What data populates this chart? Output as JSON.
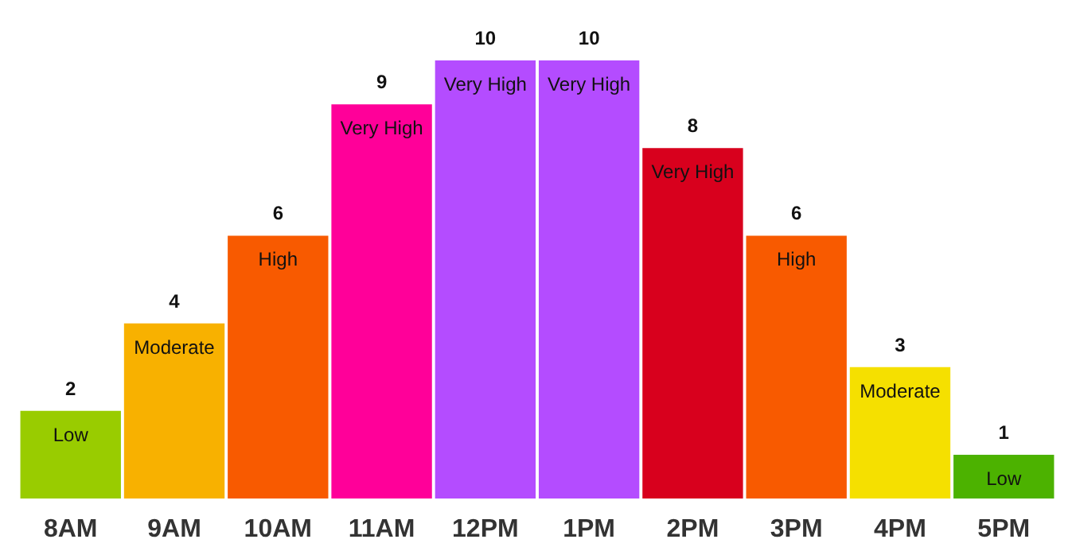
{
  "chart_data": {
    "type": "bar",
    "categories": [
      "8AM",
      "9AM",
      "10AM",
      "11AM",
      "12PM",
      "1PM",
      "2PM",
      "3PM",
      "4PM",
      "5PM"
    ],
    "values": [
      2,
      4,
      6,
      9,
      10,
      10,
      8,
      6,
      3,
      1
    ],
    "colors": [
      "#99cc00",
      "#f8b100",
      "#f85a00",
      "#ff0099",
      "#b44cff",
      "#b44cff",
      "#d8001d",
      "#f85a00",
      "#f5e000",
      "#4cb200"
    ],
    "data_labels": true,
    "tick_labels": "x",
    "grid": false,
    "annotations": [
      {
        "text": "Low",
        "x": "8AM",
        "y": 2
      },
      {
        "text": "Moderate",
        "x": "9AM",
        "y": 4
      },
      {
        "text": "High",
        "x": "10AM",
        "y": 6
      },
      {
        "text": "Very High",
        "x": "11AM",
        "y": 9
      },
      {
        "text": "Very High",
        "x": "12PM",
        "y": 10
      },
      {
        "text": "Very High",
        "x": "1PM",
        "y": 10
      },
      {
        "text": "Very High",
        "x": "2PM",
        "y": 8
      },
      {
        "text": "High",
        "x": "3PM",
        "y": 6
      },
      {
        "text": "Moderate",
        "x": "4PM",
        "y": 3
      },
      {
        "text": "Low",
        "x": "5PM",
        "y": 1
      }
    ]
  }
}
